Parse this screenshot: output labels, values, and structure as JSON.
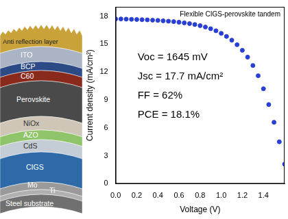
{
  "diagram": {
    "layers": [
      "Anti reflection layer",
      "ITO",
      "BCP",
      "C60",
      "Perovskite",
      "NiOx",
      "AZO",
      "CdS",
      "CIGS",
      "Mo",
      "Ti",
      "Steel substrate"
    ]
  },
  "chart_data": {
    "type": "scatter",
    "title": "Flexible CIGS-perovskite tandem",
    "x_label": "Voltage (V)",
    "y_label": "Current density (mA/cm²)",
    "annotations": [
      "Voc = 1645 mV",
      "Jsc = 17.7 mA/cm²",
      "FF = 62%",
      "PCE = 18.1%"
    ],
    "x": [
      0,
      0.05,
      0.1,
      0.15,
      0.2,
      0.25,
      0.3,
      0.35,
      0.4,
      0.45,
      0.5,
      0.55,
      0.6,
      0.65,
      0.7,
      0.75,
      0.8,
      0.85,
      0.9,
      0.95,
      1.0,
      1.05,
      1.1,
      1.15,
      1.2,
      1.25,
      1.3,
      1.35,
      1.4,
      1.45,
      1.5,
      1.55,
      1.6
    ],
    "values": [
      17.7,
      17.7,
      17.68,
      17.66,
      17.64,
      17.62,
      17.6,
      17.57,
      17.54,
      17.5,
      17.46,
      17.41,
      17.35,
      17.28,
      17.2,
      17.1,
      16.98,
      16.83,
      16.65,
      16.43,
      16.15,
      15.82,
      15.42,
      14.93,
      14.33,
      13.6,
      12.7,
      11.6,
      10.2,
      8.5,
      6.6,
      4.5,
      2.1
    ],
    "color": "#2a3fd4",
    "marker": "circle",
    "xlim": [
      0,
      1.6
    ],
    "xticks": [
      {
        "value": 0,
        "label": "0.0"
      },
      {
        "value": 0.2,
        "label": "0.2"
      },
      {
        "value": 0.4,
        "label": "0.4"
      },
      {
        "value": 0.6,
        "label": "0.6"
      },
      {
        "value": 0.8,
        "label": "0.8"
      },
      {
        "value": 1,
        "label": "1.0"
      },
      {
        "value": 1.2,
        "label": "1.2"
      },
      {
        "value": 1.4,
        "label": "1.4"
      }
    ],
    "ylim": [
      0,
      19
    ],
    "yticks": [
      0,
      3,
      6,
      9,
      12,
      15,
      18
    ],
    "grid": false,
    "legend": "none"
  }
}
